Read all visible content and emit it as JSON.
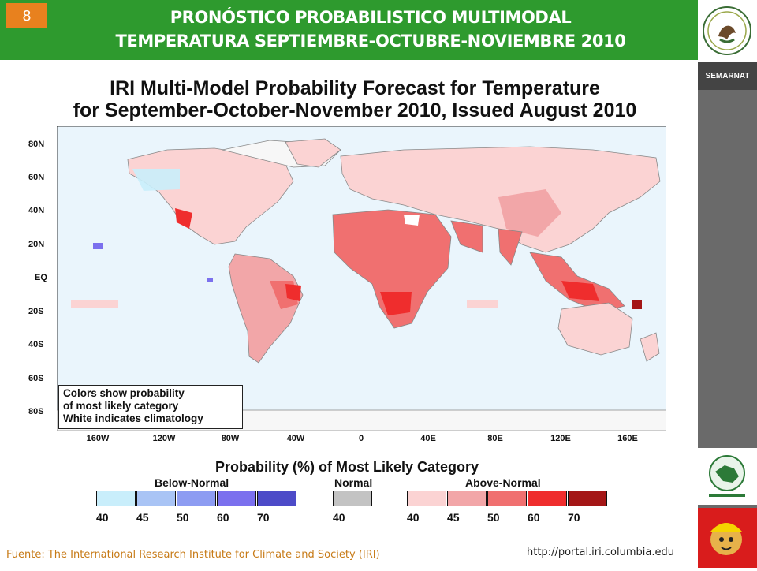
{
  "slide": {
    "number": "8"
  },
  "header": {
    "title_line1": "PRONÓSTICO PROBABILISTICO MULTIMODAL",
    "title_line2": "TEMPERATURA  SEPTIEMBRE-OCTUBRE-NOVIEMBRE 2010"
  },
  "sidebar": {
    "semarnat_label": "SEMARNAT"
  },
  "figure": {
    "title_line1": "IRI Multi-Model Probability Forecast for Temperature",
    "title_line2": "for September-October-November 2010, Issued August 2010",
    "lat_labels": [
      "80N",
      "60N",
      "40N",
      "20N",
      "EQ",
      "20S",
      "40S",
      "60S",
      "80S"
    ],
    "lon_labels": [
      "160W",
      "120W",
      "80W",
      "40W",
      "0",
      "40E",
      "80E",
      "120E",
      "160E"
    ],
    "note_lines": [
      "Colors show probability",
      "of most likely category",
      "White indicates climatology"
    ],
    "legend_title": "Probability (%) of Most Likely Category",
    "legend_groups": [
      {
        "name": "Below-Normal",
        "labels": [
          "40",
          "45",
          "50",
          "60",
          "70"
        ],
        "colors": [
          "#c9eefb",
          "#a9c4f5",
          "#8d9cf2",
          "#7b70ee",
          "#4d4bc8"
        ]
      },
      {
        "name": "Normal",
        "labels": [
          "40"
        ],
        "colors": [
          "#c3c3c3"
        ]
      },
      {
        "name": "Above-Normal",
        "labels": [
          "40",
          "45",
          "50",
          "60",
          "70"
        ],
        "colors": [
          "#fbd3d3",
          "#f2a6a8",
          "#f07070",
          "#ef2d2d",
          "#a41616"
        ]
      }
    ]
  },
  "footer": {
    "source": "Fuente: The International Research Institute for Climate and Society (IRI)",
    "url": "http://portal.iri.columbia.edu"
  },
  "colors": {
    "header_green": "#2e9a2e",
    "slide_badge": "#e8811e",
    "sidebar_gray": "#6a6a6a",
    "source_text": "#c77a16"
  }
}
